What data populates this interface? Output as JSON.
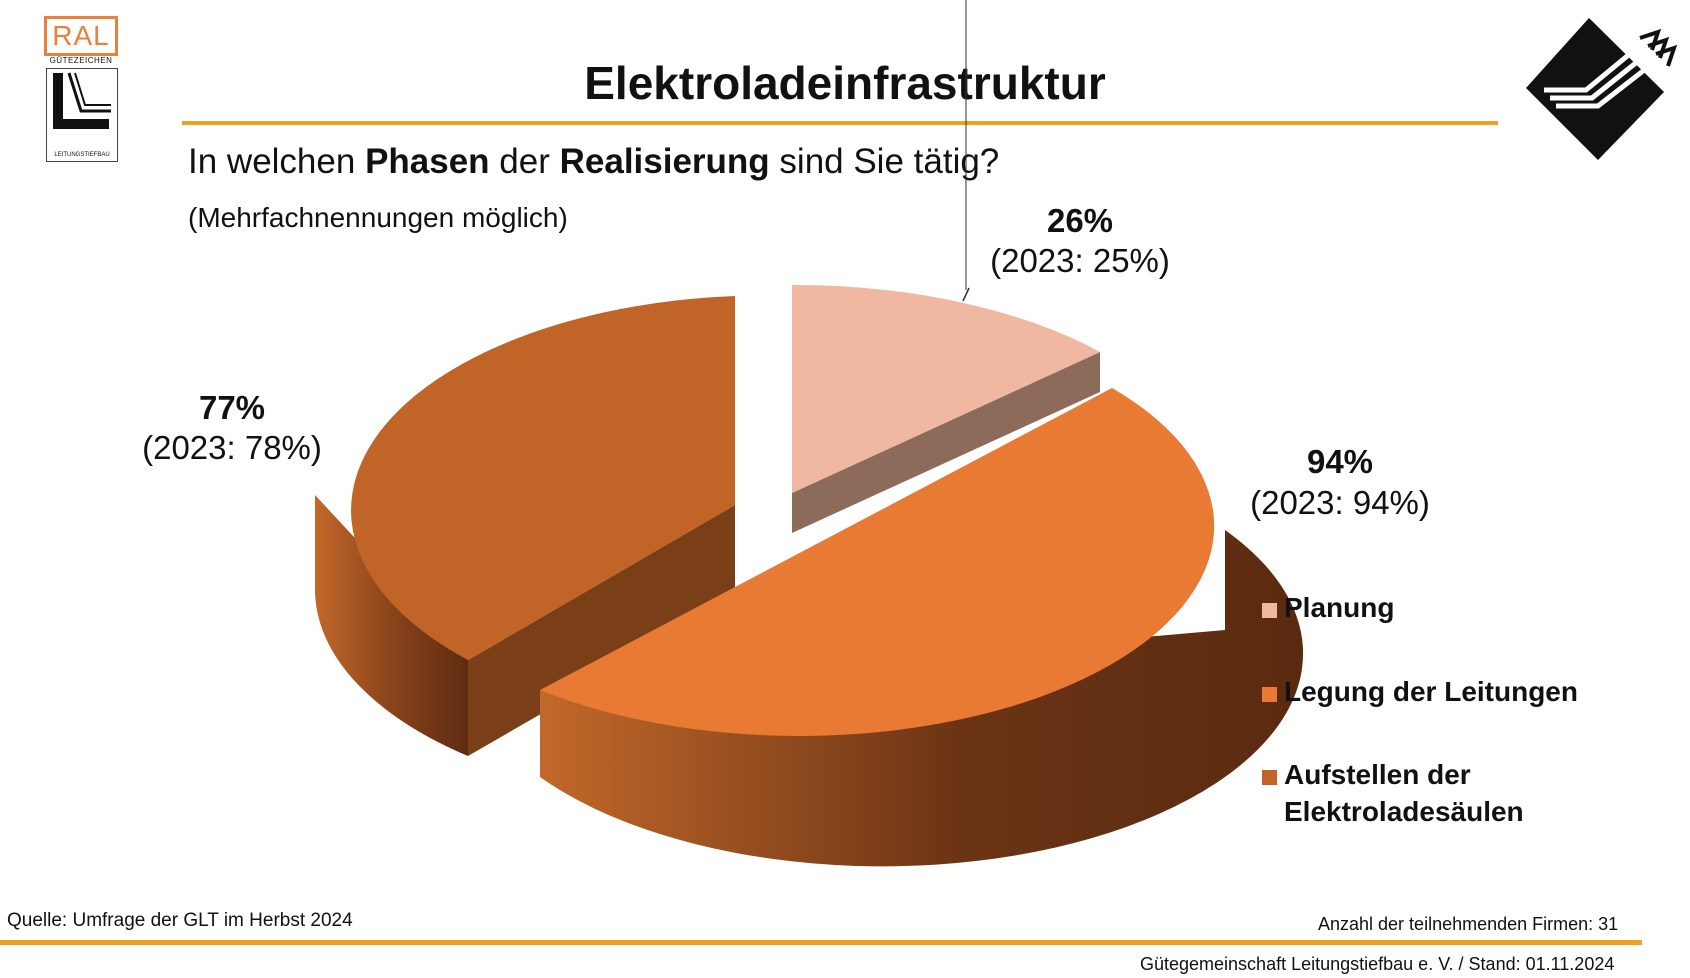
{
  "header": {
    "title": "Elektroladeinfrastruktur",
    "question_parts": [
      "In welchen ",
      "Phasen",
      " der ",
      "Realisierung",
      " sind Sie tätig?"
    ],
    "note": "(Mehrfachnennungen möglich)"
  },
  "logos": {
    "left_box_text": "RAL",
    "left_sub_text": "GÜTEZEICHEN",
    "left_emblem_text": "LEITUNGSTIEFBAU",
    "accent_color": "#e9813a"
  },
  "chart_data": {
    "type": "pie",
    "style": "3d-exploded",
    "series": [
      {
        "name": "Planung",
        "value": 26,
        "label": "26%",
        "previous": "(2023: 25%)",
        "color": "#f0b7a1"
      },
      {
        "name": "Legung der Leitungen",
        "value": 94,
        "label": "94%",
        "previous": "(2023: 94%)",
        "color": "#e87a33"
      },
      {
        "name": "Aufstellen der Elektroladesäulen",
        "value": 77,
        "label": "77%",
        "previous": "(2023: 78%)",
        "color": "#c06427"
      }
    ],
    "legend": {
      "placement": "right",
      "items": [
        {
          "lines": [
            "Planung"
          ],
          "color": "#f0b7a1"
        },
        {
          "lines": [
            "Legung der Leitungen"
          ],
          "color": "#e87a33"
        },
        {
          "lines": [
            "Aufstellen der",
            "Elektroladesäulen"
          ],
          "color": "#c06427"
        }
      ]
    }
  },
  "footer": {
    "source": "Quelle: Umfrage der GLT im Herbst 2024",
    "participants": "Anzahl der teilnehmenden Firmen: 31",
    "publisher": "Gütegemeinschaft Leitungstiefbau e. V. / Stand: 01.11.2024",
    "accent_color": "#f0a01e"
  }
}
